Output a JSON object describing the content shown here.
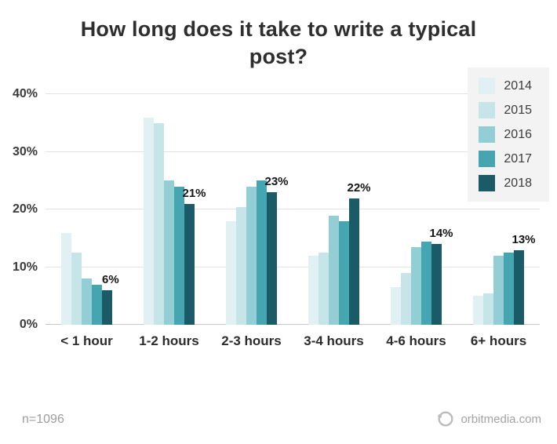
{
  "title": "How long does it take to write a typical post?",
  "footer": {
    "n_label": "n=1096",
    "brand": "orbitmedia.com"
  },
  "chart_data": {
    "type": "bar",
    "title": "How long does it take to write a typical post?",
    "categories": [
      "< 1 hour",
      "1-2 hours",
      "2-3 hours",
      "3-4 hours",
      "4-6 hours",
      "6+ hours"
    ],
    "series": [
      {
        "name": "2014",
        "color": "#e1f0f2",
        "values": [
          16,
          36,
          18,
          12,
          6.5,
          5
        ]
      },
      {
        "name": "2015",
        "color": "#c6e5e8",
        "values": [
          12.5,
          35,
          20.5,
          12.5,
          9,
          5.5
        ]
      },
      {
        "name": "2016",
        "color": "#93ced4",
        "values": [
          8,
          25,
          24,
          19,
          13.5,
          12
        ]
      },
      {
        "name": "2017",
        "color": "#45a5b1",
        "values": [
          7,
          24,
          25,
          18,
          14.5,
          12.5
        ]
      },
      {
        "name": "2018",
        "color": "#1b5b68",
        "values": [
          6,
          21,
          23,
          22,
          14,
          13
        ]
      }
    ],
    "value_labels": [
      "6%",
      "21%",
      "23%",
      "22%",
      "14%",
      "13%"
    ],
    "value_labels_series": "2018",
    "ylim": [
      0,
      40
    ],
    "yticks": [
      {
        "label": "0%",
        "value": 0
      },
      {
        "label": "10%",
        "value": 10
      },
      {
        "label": "20%",
        "value": 20
      },
      {
        "label": "30%",
        "value": 30
      },
      {
        "label": "40%",
        "value": 40
      }
    ],
    "grid": true,
    "legend_position": "top-right"
  }
}
